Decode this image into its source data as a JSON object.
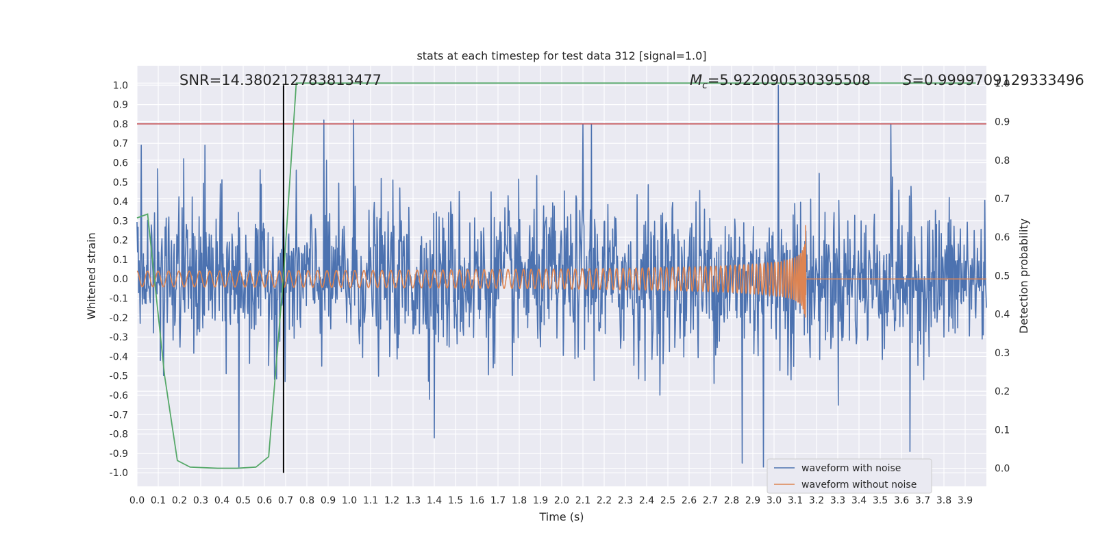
{
  "chart_data": {
    "type": "line",
    "title": "stats at each timestep for test data 312 [signal=1.0]",
    "xlabel": "Time (s)",
    "ylabel_left": "Whitened strain",
    "ylabel_right": "Detection probability",
    "xlim": [
      0.0,
      4.0
    ],
    "ylim_left": [
      -1.07,
      1.1
    ],
    "ylim_right": [
      -0.047,
      1.045
    ],
    "x_ticks": [
      "0.0",
      "0.1",
      "0.2",
      "0.3",
      "0.4",
      "0.5",
      "0.6",
      "0.7",
      "0.8",
      "0.9",
      "1.0",
      "1.1",
      "1.2",
      "1.3",
      "1.4",
      "1.5",
      "1.6",
      "1.7",
      "1.8",
      "1.9",
      "2.0",
      "2.1",
      "2.2",
      "2.3",
      "2.4",
      "2.5",
      "2.6",
      "2.7",
      "2.8",
      "2.9",
      "3.0",
      "3.1",
      "3.2",
      "3.3",
      "3.4",
      "3.5",
      "3.6",
      "3.7",
      "3.8",
      "3.9"
    ],
    "y_ticks_left": [
      "1.0",
      "0.9",
      "0.8",
      "0.7",
      "0.6",
      "0.5",
      "0.4",
      "0.3",
      "0.2",
      "0.1",
      "0.0",
      "-0.1",
      "-0.2",
      "-0.3",
      "-0.4",
      "-0.5",
      "-0.6",
      "-0.7",
      "-0.8",
      "-0.9",
      "-1.0"
    ],
    "y_ticks_right": [
      "1.0",
      "0.9",
      "0.8",
      "0.7",
      "0.6",
      "0.5",
      "0.4",
      "0.3",
      "0.2",
      "0.1",
      "0.0"
    ],
    "grid": true,
    "legend_position": "bottom-right",
    "annotations": {
      "snr": "SNR=14.380212783813477",
      "mc_symbol": "M",
      "mc_sub": "c",
      "mc_value": "=5.922090530395508",
      "s_symbol": "S",
      "s_value": "=0.9999709129333496"
    },
    "threshold_line": {
      "y": 0.8,
      "color": "#c44e52"
    },
    "marker_line": {
      "x": 0.69,
      "ymin": -1.0,
      "ymax": 1.0,
      "color": "#000000"
    },
    "series": [
      {
        "name": "waveform with noise",
        "color": "#4c72b0",
        "axis": "left",
        "noise_envelope_approx": {
          "typical_peak": 0.35,
          "max": 1.0,
          "min": -0.97
        },
        "notable_peaks": [
          [
            0.02,
            0.69
          ],
          [
            0.22,
            0.62
          ],
          [
            0.32,
            0.69
          ],
          [
            0.48,
            -0.97
          ],
          [
            0.88,
            0.82
          ],
          [
            1.02,
            0.82
          ],
          [
            1.4,
            -0.82
          ],
          [
            2.1,
            0.8
          ],
          [
            2.14,
            0.8
          ],
          [
            2.85,
            -0.95
          ],
          [
            2.95,
            -0.97
          ],
          [
            3.02,
            1.0
          ],
          [
            3.55,
            0.8
          ],
          [
            3.64,
            -0.89
          ]
        ]
      },
      {
        "name": "waveform without noise",
        "color": "#dd8452",
        "axis": "left",
        "chirp": {
          "start_time": 0.0,
          "merger_time": 3.15,
          "start_amplitude": 0.04,
          "peak_amplitude": 0.33,
          "start_cycles_per_s": 20,
          "ringdown_amplitude": 0.0
        }
      },
      {
        "name": "",
        "color": "#55a868",
        "axis": "right",
        "x": [
          0.0,
          0.05,
          0.13,
          0.19,
          0.25,
          0.38,
          0.47,
          0.56,
          0.62,
          0.69,
          0.75,
          1.0,
          2.0,
          3.0,
          3.95
        ],
        "y": [
          0.65,
          0.66,
          0.24,
          0.02,
          0.003,
          0.0,
          0.0,
          0.003,
          0.03,
          0.5,
          1.0,
          1.0,
          1.0,
          1.0,
          1.0
        ]
      }
    ]
  }
}
